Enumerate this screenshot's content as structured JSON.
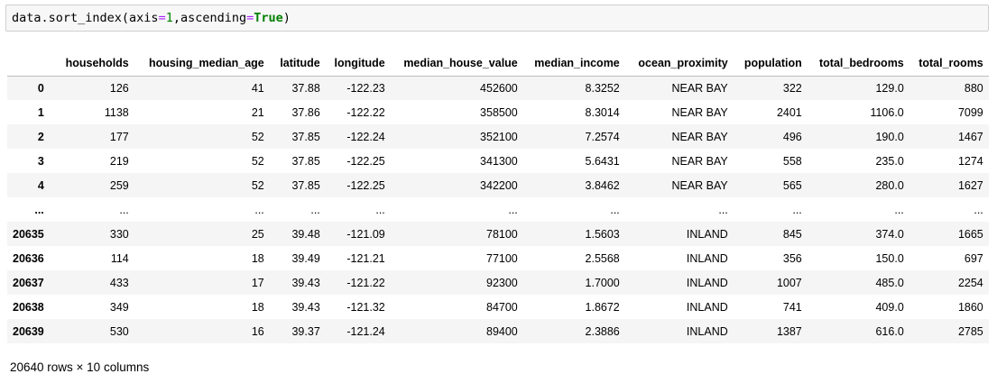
{
  "cell": {
    "code_fn": "data.sort_index(axis",
    "code_eq1": "=",
    "code_num1": "1",
    "code_mid": ",ascending",
    "code_eq2": "=",
    "code_kw": "True",
    "code_end": ")"
  },
  "table": {
    "columns": [
      "households",
      "housing_median_age",
      "latitude",
      "longitude",
      "median_house_value",
      "median_income",
      "ocean_proximity",
      "population",
      "total_bedrooms",
      "total_rooms"
    ],
    "rows": [
      {
        "index": "0",
        "cells": [
          "126",
          "41",
          "37.88",
          "-122.23",
          "452600",
          "8.3252",
          "NEAR BAY",
          "322",
          "129.0",
          "880"
        ]
      },
      {
        "index": "1",
        "cells": [
          "1138",
          "21",
          "37.86",
          "-122.22",
          "358500",
          "8.3014",
          "NEAR BAY",
          "2401",
          "1106.0",
          "7099"
        ]
      },
      {
        "index": "2",
        "cells": [
          "177",
          "52",
          "37.85",
          "-122.24",
          "352100",
          "7.2574",
          "NEAR BAY",
          "496",
          "190.0",
          "1467"
        ]
      },
      {
        "index": "3",
        "cells": [
          "219",
          "52",
          "37.85",
          "-122.25",
          "341300",
          "5.6431",
          "NEAR BAY",
          "558",
          "235.0",
          "1274"
        ]
      },
      {
        "index": "4",
        "cells": [
          "259",
          "52",
          "37.85",
          "-122.25",
          "342200",
          "3.8462",
          "NEAR BAY",
          "565",
          "280.0",
          "1627"
        ]
      },
      {
        "index": "...",
        "cells": [
          "...",
          "...",
          "...",
          "...",
          "...",
          "...",
          "...",
          "...",
          "...",
          "..."
        ]
      },
      {
        "index": "20635",
        "cells": [
          "330",
          "25",
          "39.48",
          "-121.09",
          "78100",
          "1.5603",
          "INLAND",
          "845",
          "374.0",
          "1665"
        ]
      },
      {
        "index": "20636",
        "cells": [
          "114",
          "18",
          "39.49",
          "-121.21",
          "77100",
          "2.5568",
          "INLAND",
          "356",
          "150.0",
          "697"
        ]
      },
      {
        "index": "20637",
        "cells": [
          "433",
          "17",
          "39.43",
          "-121.22",
          "92300",
          "1.7000",
          "INLAND",
          "1007",
          "485.0",
          "2254"
        ]
      },
      {
        "index": "20638",
        "cells": [
          "349",
          "18",
          "39.43",
          "-121.32",
          "84700",
          "1.8672",
          "INLAND",
          "741",
          "409.0",
          "1860"
        ]
      },
      {
        "index": "20639",
        "cells": [
          "530",
          "16",
          "39.37",
          "-121.24",
          "89400",
          "2.3886",
          "INLAND",
          "1387",
          "616.0",
          "2785"
        ]
      }
    ]
  },
  "footer": {
    "shape": "20640 rows × 10 columns"
  }
}
